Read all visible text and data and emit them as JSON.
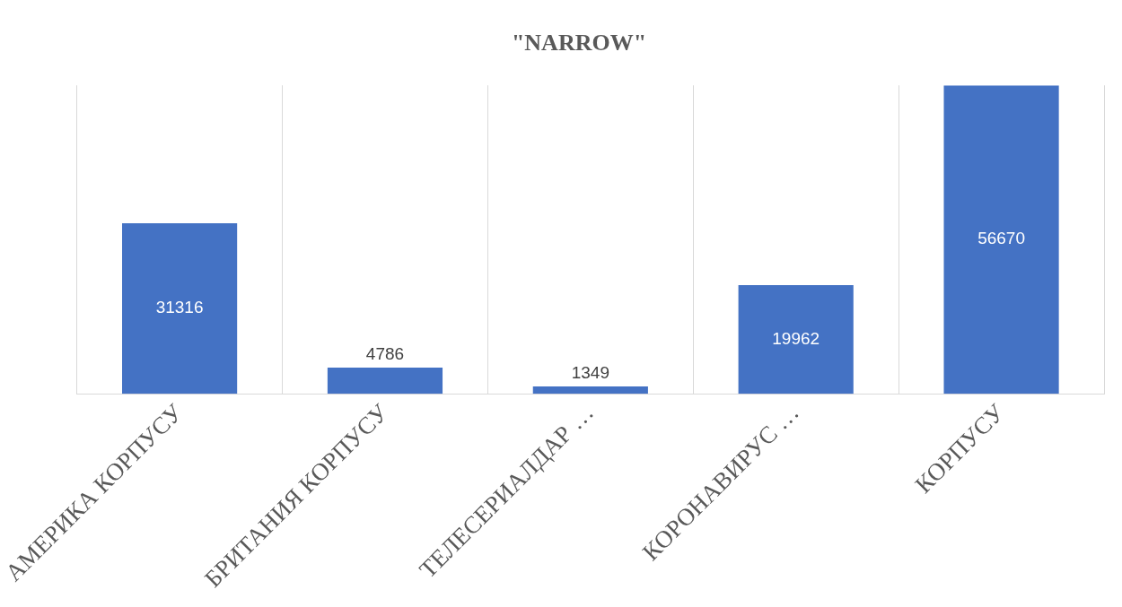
{
  "chart_data": {
    "type": "bar",
    "title": "\"NARROW\"",
    "categories": [
      "АМЕРИКА КОРПУСУ",
      "БРИТАНИЯ КОРПУСУ",
      "ТЕЛЕСЕРИАЛДАР …",
      "КОРОНАВИРУС …",
      "КОРПУСУ"
    ],
    "values": [
      31316,
      4786,
      1349,
      19962,
      56670
    ],
    "color": "#4472c4",
    "ylim": [
      0,
      56670
    ],
    "data_labels": true,
    "grid": "x",
    "tick_labels": "x"
  }
}
